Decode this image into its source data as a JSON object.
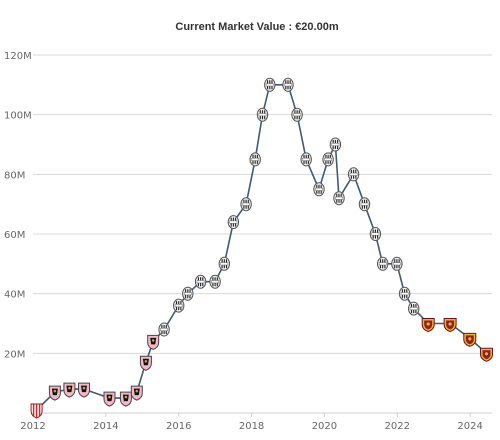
{
  "chart_data": {
    "type": "line",
    "title": "Current Market Value : €20.00m",
    "xlabel": "",
    "ylabel": "",
    "xlim": [
      2012,
      2024.6
    ],
    "ylim": [
      0,
      120
    ],
    "x_ticks": [
      2012,
      2014,
      2016,
      2018,
      2020,
      2022,
      2024
    ],
    "x_tick_labels": [
      "2012",
      "2014",
      "2016",
      "2018",
      "2020",
      "2022",
      "2024"
    ],
    "y_ticks": [
      20,
      40,
      60,
      80,
      100,
      120
    ],
    "y_tick_labels": [
      "20M",
      "40M",
      "60M",
      "80M",
      "100M",
      "120M"
    ],
    "grid": true,
    "line_color": "#3f5a73",
    "series": [
      {
        "values": [
          {
            "x": 2012.1,
            "y": 1,
            "club": "Vicenza"
          },
          {
            "x": 2012.6,
            "y": 7,
            "club": "Palermo"
          },
          {
            "x": 2013.0,
            "y": 8,
            "club": "Palermo"
          },
          {
            "x": 2013.4,
            "y": 8,
            "club": "Palermo"
          },
          {
            "x": 2014.1,
            "y": 5,
            "club": "Palermo"
          },
          {
            "x": 2014.55,
            "y": 5,
            "club": "Palermo"
          },
          {
            "x": 2014.85,
            "y": 7,
            "club": "Palermo"
          },
          {
            "x": 2015.1,
            "y": 17,
            "club": "Palermo"
          },
          {
            "x": 2015.3,
            "y": 24,
            "club": "Palermo"
          },
          {
            "x": 2015.6,
            "y": 28,
            "club": "Juventus"
          },
          {
            "x": 2016.0,
            "y": 36,
            "club": "Juventus"
          },
          {
            "x": 2016.25,
            "y": 40,
            "club": "Juventus"
          },
          {
            "x": 2016.6,
            "y": 44,
            "club": "Juventus"
          },
          {
            "x": 2017.0,
            "y": 44,
            "club": "Juventus"
          },
          {
            "x": 2017.25,
            "y": 50,
            "club": "Juventus"
          },
          {
            "x": 2017.5,
            "y": 64,
            "club": "Juventus"
          },
          {
            "x": 2017.85,
            "y": 70,
            "club": "Juventus"
          },
          {
            "x": 2018.1,
            "y": 85,
            "club": "Juventus"
          },
          {
            "x": 2018.3,
            "y": 100,
            "club": "Juventus"
          },
          {
            "x": 2018.5,
            "y": 110,
            "club": "Juventus"
          },
          {
            "x": 2019.0,
            "y": 110,
            "club": "Juventus"
          },
          {
            "x": 2019.25,
            "y": 100,
            "club": "Juventus"
          },
          {
            "x": 2019.5,
            "y": 85,
            "club": "Juventus"
          },
          {
            "x": 2019.85,
            "y": 75,
            "club": "Juventus"
          },
          {
            "x": 2020.1,
            "y": 85,
            "club": "Juventus"
          },
          {
            "x": 2020.3,
            "y": 90,
            "club": "Juventus"
          },
          {
            "x": 2020.4,
            "y": 72,
            "club": "Juventus"
          },
          {
            "x": 2020.8,
            "y": 80,
            "club": "Juventus"
          },
          {
            "x": 2021.1,
            "y": 70,
            "club": "Juventus"
          },
          {
            "x": 2021.4,
            "y": 60,
            "club": "Juventus"
          },
          {
            "x": 2021.6,
            "y": 50,
            "club": "Juventus"
          },
          {
            "x": 2021.99,
            "y": 50,
            "club": "Juventus"
          },
          {
            "x": 2022.2,
            "y": 40,
            "club": "Juventus"
          },
          {
            "x": 2022.45,
            "y": 35,
            "club": "Juventus"
          },
          {
            "x": 2022.85,
            "y": 30,
            "club": "Roma"
          },
          {
            "x": 2023.45,
            "y": 30,
            "club": "Roma"
          },
          {
            "x": 2023.99,
            "y": 25,
            "club": "Roma"
          },
          {
            "x": 2024.45,
            "y": 20,
            "club": "Roma"
          }
        ]
      }
    ],
    "club_badges": {
      "Vicenza": {
        "icon": "vicenza-crest-icon",
        "primary": "#cc2a2a",
        "secondary": "#ffffff"
      },
      "Palermo": {
        "icon": "palermo-crest-icon",
        "primary": "#f3b7c8",
        "secondary": "#111111"
      },
      "Juventus": {
        "icon": "juventus-crest-icon",
        "primary": "#eeeeee",
        "secondary": "#222222"
      },
      "Roma": {
        "icon": "roma-crest-icon",
        "primary": "#8e1f2b",
        "secondary": "#f0b323"
      }
    }
  }
}
